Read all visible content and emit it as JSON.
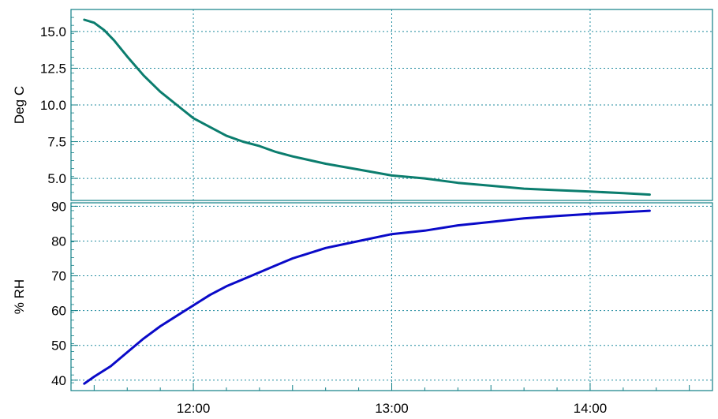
{
  "chart_data": [
    {
      "type": "line",
      "ylabel": "Deg C",
      "ylim": [
        3.5,
        16.5
      ],
      "yticks": [
        "15.0",
        "12.5",
        "10.0",
        "7.5",
        "5.0"
      ],
      "grid": true,
      "series": [
        {
          "color": "#0b7d6e",
          "x": [
            "11:27",
            "11:30",
            "11:33",
            "11:36",
            "11:40",
            "11:45",
            "11:50",
            "11:55",
            "12:00",
            "12:05",
            "12:10",
            "12:15",
            "12:20",
            "12:25",
            "12:30",
            "12:40",
            "12:50",
            "13:00",
            "13:10",
            "13:20",
            "13:30",
            "13:40",
            "13:50",
            "14:00",
            "14:10",
            "14:18"
          ],
          "values": [
            15.8,
            15.6,
            15.1,
            14.4,
            13.3,
            12.0,
            10.9,
            10.0,
            9.1,
            8.5,
            7.9,
            7.5,
            7.2,
            6.8,
            6.5,
            6.0,
            5.6,
            5.2,
            5.0,
            4.7,
            4.5,
            4.3,
            4.2,
            4.1,
            4.0,
            3.9
          ]
        }
      ]
    },
    {
      "type": "line",
      "ylabel": "% RH",
      "ylim": [
        37,
        91
      ],
      "yticks": [
        "90",
        "80",
        "70",
        "60",
        "50",
        "40"
      ],
      "xticks": [
        "12:00",
        "13:00",
        "14:00"
      ],
      "grid": true,
      "series": [
        {
          "color": "#0a0ac8",
          "x": [
            "11:27",
            "11:30",
            "11:35",
            "11:40",
            "11:45",
            "11:50",
            "11:55",
            "12:00",
            "12:05",
            "12:10",
            "12:15",
            "12:20",
            "12:25",
            "12:30",
            "12:40",
            "12:50",
            "13:00",
            "13:10",
            "13:20",
            "13:30",
            "13:40",
            "13:50",
            "14:00",
            "14:10",
            "14:18"
          ],
          "values": [
            39,
            41,
            44,
            48,
            52,
            55.5,
            58.5,
            61.5,
            64.5,
            67,
            69,
            71,
            73,
            75,
            78,
            80,
            82,
            83,
            84.5,
            85.5,
            86.5,
            87.2,
            87.8,
            88.3,
            88.7
          ]
        }
      ]
    }
  ]
}
